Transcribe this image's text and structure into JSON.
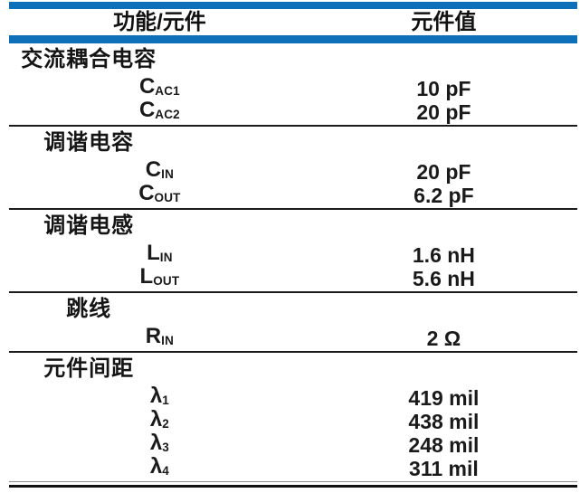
{
  "table": {
    "accent_color": "#0D70B8",
    "rule_color": "#1b1b1b",
    "header": {
      "function_col": "功能/元件",
      "value_col": "元件值"
    },
    "sections": [
      {
        "header": "交流耦合电容",
        "rows": [
          {
            "symbol": "C",
            "subscript": "AC1",
            "value": "10 pF"
          },
          {
            "symbol": "C",
            "subscript": "AC2",
            "value": "20 pF"
          }
        ]
      },
      {
        "header": "调谐电容",
        "rows": [
          {
            "symbol": "C",
            "subscript": "IN",
            "value": "20 pF"
          },
          {
            "symbol": "C",
            "subscript": "OUT",
            "value": "6.2 pF"
          }
        ]
      },
      {
        "header": "调谐电感",
        "rows": [
          {
            "symbol": "L",
            "subscript": "IN",
            "value": "1.6 nH"
          },
          {
            "symbol": "L",
            "subscript": "OUT",
            "value": "5.6 nH"
          }
        ]
      },
      {
        "header": "跳线",
        "rows": [
          {
            "symbol": "R",
            "subscript": "IN",
            "value": "2 Ω"
          }
        ]
      },
      {
        "header": "元件间距",
        "rows": [
          {
            "symbol": "λ",
            "subscript": "1",
            "value": "419 mil"
          },
          {
            "symbol": "λ",
            "subscript": "2",
            "value": "438 mil"
          },
          {
            "symbol": "λ",
            "subscript": "3",
            "value": "248 mil"
          },
          {
            "symbol": "λ",
            "subscript": "4",
            "value": "311 mil"
          }
        ]
      }
    ]
  }
}
